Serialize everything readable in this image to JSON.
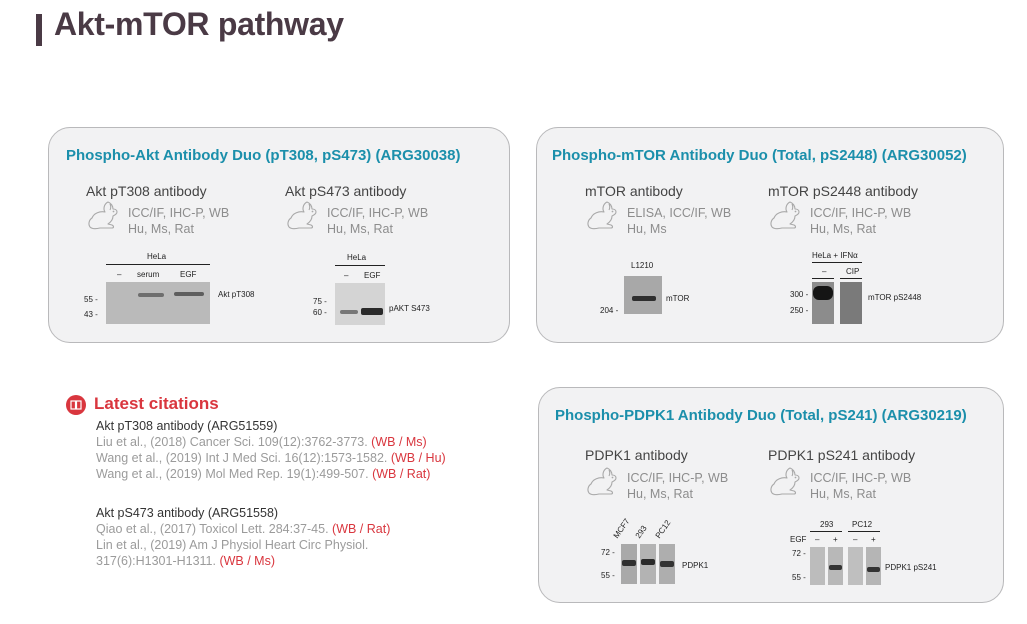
{
  "page": {
    "title": "Akt-mTOR pathway"
  },
  "cards": {
    "akt": {
      "title": "Phospho-Akt Antibody Duo (pT308, pS473) (ARG30038)",
      "ab1": {
        "name": "Akt pT308 antibody",
        "apps": "ICC/IF, IHC-P, WB",
        "species": "Hu, Ms, Rat",
        "blot": {
          "cell": "HeLa",
          "lanes": [
            "–",
            "serum",
            "EGF"
          ],
          "mw": [
            "55 -",
            "43 -"
          ],
          "target": "Akt pT308"
        }
      },
      "ab2": {
        "name": "Akt pS473 antibody",
        "apps": "ICC/IF, IHC-P, WB",
        "species": "Hu, Ms, Rat",
        "blot": {
          "cell": "HeLa",
          "lanes": [
            "–",
            "EGF"
          ],
          "mw": [
            "75 -",
            "60 -"
          ],
          "target": "pAKT S473"
        }
      }
    },
    "mtor": {
      "title": "Phospho-mTOR Antibody Duo (Total, pS2448) (ARG30052)",
      "ab1": {
        "name": "mTOR antibody",
        "apps": "ELISA, ICC/IF, WB",
        "species": "Hu, Ms",
        "blot": {
          "cell": "L1210",
          "mw": [
            "204 -"
          ],
          "target": "mTOR"
        }
      },
      "ab2": {
        "name": "mTOR pS2448 antibody",
        "apps": "ICC/IF, IHC-P, WB",
        "species": "Hu, Ms, Rat",
        "blot": {
          "cell": "HeLa + IFNα",
          "lanes": [
            "–",
            "CIP"
          ],
          "mw": [
            "300 -",
            "250 -"
          ],
          "target": "mTOR pS2448"
        }
      }
    },
    "pdpk1": {
      "title": "Phospho-PDPK1 Antibody Duo (Total, pS241) (ARG30219)",
      "ab1": {
        "name": "PDPK1 antibody",
        "apps": "ICC/IF, IHC-P, WB",
        "species": "Hu, Ms, Rat",
        "blot": {
          "lanes": [
            "MCF7",
            "293",
            "PC12"
          ],
          "mw": [
            "72 -",
            "55 -"
          ],
          "target": "PDPK1"
        }
      },
      "ab2": {
        "name": "PDPK1 pS241 antibody",
        "apps": "ICC/IF, IHC-P, WB",
        "species": "Hu, Ms, Rat",
        "blot": {
          "groups": [
            "293",
            "PC12"
          ],
          "treat": "EGF",
          "signs": [
            "–",
            "+",
            "–",
            "+"
          ],
          "mw": [
            "72 -",
            "55 -"
          ],
          "target": "PDPK1 pS241"
        }
      }
    }
  },
  "citations": {
    "heading": "Latest citations",
    "groups": [
      {
        "antibody": "Akt pT308 antibody (ARG51559)",
        "refs": [
          {
            "text": "Liu et al., (2018) Cancer Sci. 109(12):3762-3773. ",
            "tag": "(WB / Ms)"
          },
          {
            "text": "Wang et al., (2019) Int J Med Sci. 16(12):1573-1582. ",
            "tag": "(WB / Hu)"
          },
          {
            "text": "Wang et al., (2019) Mol Med Rep. 19(1):499-507. ",
            "tag": "(WB / Rat)"
          }
        ]
      },
      {
        "antibody": "Akt pS473 antibody (ARG51558)",
        "refs": [
          {
            "text": "Qiao et al., (2017) Toxicol Lett. 284:37-45. ",
            "tag": "(WB / Rat)"
          },
          {
            "text": "Lin et al., (2019) Am J Physiol Heart Circ Physiol.",
            "tag": ""
          },
          {
            "text": "317(6):H1301-H1311. ",
            "tag": "(WB / Ms)"
          }
        ]
      }
    ]
  },
  "colors": {
    "accent": "#1b8fab",
    "citation_red": "#d9363e",
    "title": "#4a3a45"
  }
}
